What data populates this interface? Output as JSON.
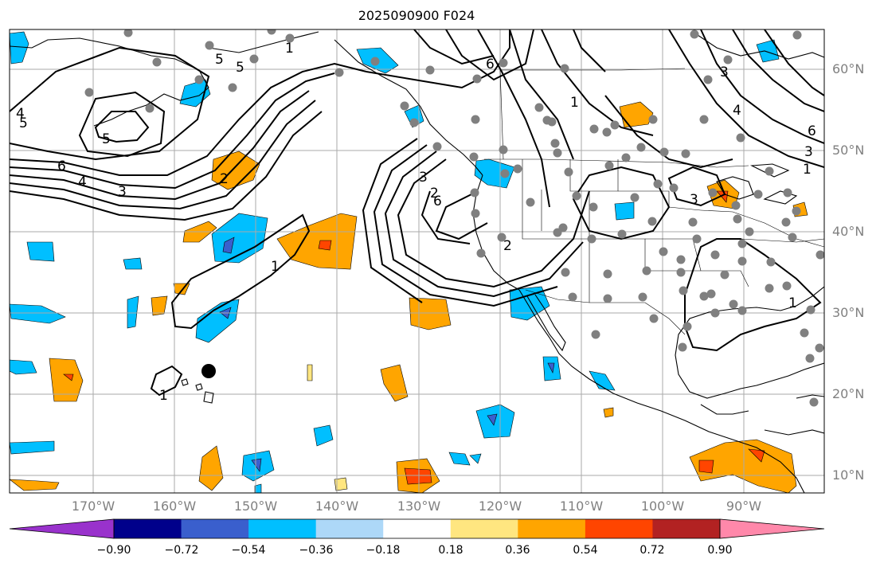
{
  "title": "2025090900 F024",
  "lat_labels": [
    "60°N",
    "50°N",
    "40°N",
    "30°N",
    "20°N",
    "10°N"
  ],
  "lon_labels": [
    "170°W",
    "160°W",
    "150°W",
    "140°W",
    "130°W",
    "120°W",
    "110°W",
    "100°W",
    "90°W"
  ],
  "colorbar": {
    "ticks": [
      "−0.90",
      "−0.72",
      "−0.54",
      "−0.36",
      "−0.18",
      "0.18",
      "0.36",
      "0.54",
      "0.72",
      "0.90"
    ],
    "colors": [
      "#9932cc",
      "#00008b",
      "#3a5fcd",
      "#00bfff",
      "#add8f8",
      "#ffffff",
      "#ffe680",
      "#ffa500",
      "#ff4500",
      "#b22222",
      "#ff88aa"
    ]
  },
  "contour_labels": [
    "1",
    "5",
    "5",
    "6",
    "4",
    "3",
    "2",
    "1",
    "1",
    "1",
    "1",
    "2",
    "3",
    "6",
    "6",
    "5",
    "3",
    "3",
    "3",
    "4",
    "4",
    "6",
    "5",
    "1",
    "2"
  ],
  "colors": {
    "land_line": "#000000",
    "grid": "#aaaaaa",
    "station": "#808080"
  }
}
